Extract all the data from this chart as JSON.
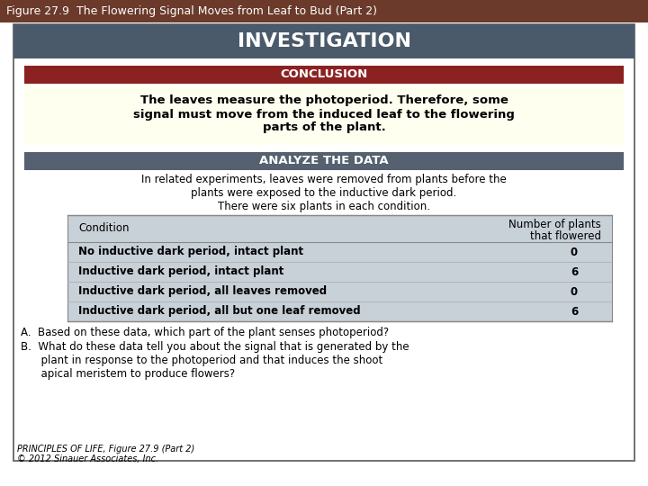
{
  "title_bar_color": "#6B3A2A",
  "title_text": "Figure 27.9  The Flowering Signal Moves from Leaf to Bud (Part 2)",
  "title_text_color": "#FFFFFF",
  "title_fontsize": 9,
  "outer_bg": "#FFFFFF",
  "panel_border_color": "#5A5A5A",
  "investigation_bg": "#4A5A6A",
  "investigation_text": "INVESTIGATION",
  "investigation_text_color": "#FFFFFF",
  "investigation_fontsize": 16,
  "conclusion_bar_color": "#8B2222",
  "conclusion_text": "CONCLUSION",
  "conclusion_text_color": "#FFFFFF",
  "conclusion_fontsize": 9.5,
  "conclusion_body_bg": "#FFFFF0",
  "conclusion_body_text": "The leaves measure the photoperiod. Therefore, some\nsignal must move from the induced leaf to the flowering\nparts of the plant.",
  "conclusion_body_fontsize": 9.5,
  "analyze_bar_color": "#556070",
  "analyze_text": "ANALYZE THE DATA",
  "analyze_text_color": "#FFFFFF",
  "analyze_fontsize": 9.5,
  "analyze_body_text": "In related experiments, leaves were removed from plants before the\nplants were exposed to the inductive dark period.\nThere were six plants in each condition.",
  "analyze_body_fontsize": 8.5,
  "table_bg": "#C8D0D8",
  "table_border_color": "#888888",
  "table_header_col1": "Condition",
  "table_header_col2": "Number of plants\nthat flowered",
  "table_rows": [
    [
      "No inductive dark period, intact plant",
      "0"
    ],
    [
      "Inductive dark period, intact plant",
      "6"
    ],
    [
      "Inductive dark period, all leaves removed",
      "0"
    ],
    [
      "Inductive dark period, all but one leaf removed",
      "6"
    ]
  ],
  "table_fontsize": 8.5,
  "questions_text_A": "A.  Based on these data, which part of the plant senses photoperiod?",
  "questions_text_B": "B.  What do these data tell you about the signal that is generated by the\n      plant in response to the photoperiod and that induces the shoot\n      apical meristem to produce flowers?",
  "questions_fontsize": 8.5,
  "footer_text_1": "PRINCIPLES OF LIFE, Figure 27.9 (Part 2)",
  "footer_text_2": "© 2012 Sinauer Associates, Inc.",
  "footer_fontsize": 7.0
}
